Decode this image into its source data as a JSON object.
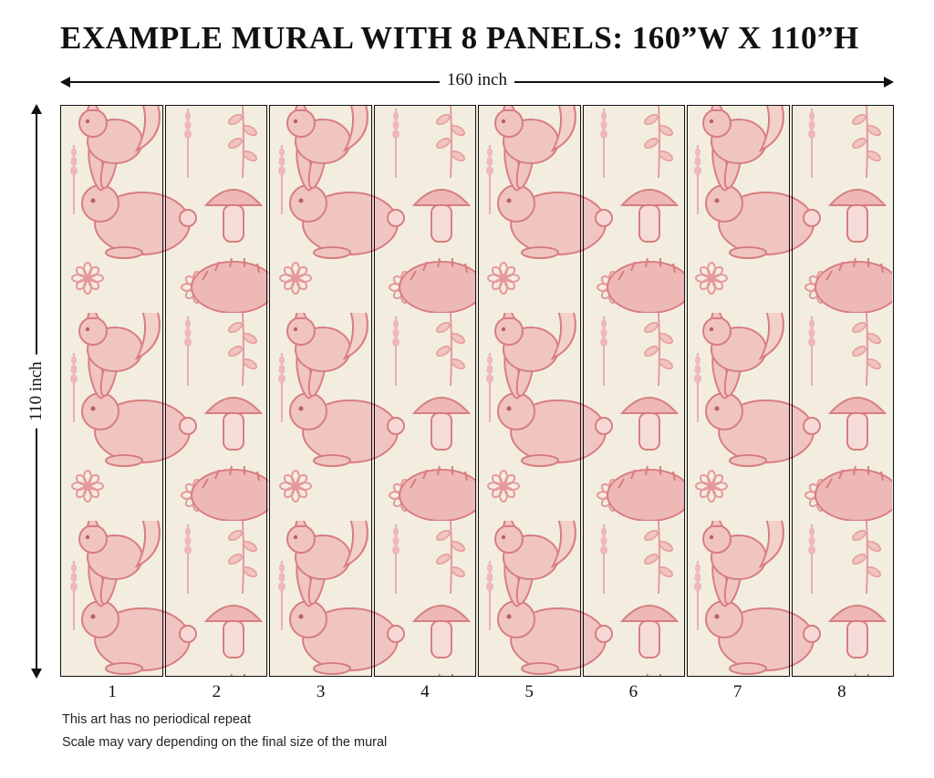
{
  "title": "EXAMPLE MURAL WITH 8 PANELS: 160”W X 110”H",
  "dimensions": {
    "width_label": "160 inch",
    "height_label": "110 inch"
  },
  "panels": [
    "1",
    "2",
    "3",
    "4",
    "5",
    "6",
    "7",
    "8"
  ],
  "notes": {
    "line1": "This art has no periodical repeat",
    "line2": "Scale may vary depending on the final size of the mural"
  },
  "colors": {
    "mural_background": "#f3ede0",
    "illustration": "#e49a9a",
    "illustration_dark": "#d87e80",
    "border": "#111111"
  }
}
